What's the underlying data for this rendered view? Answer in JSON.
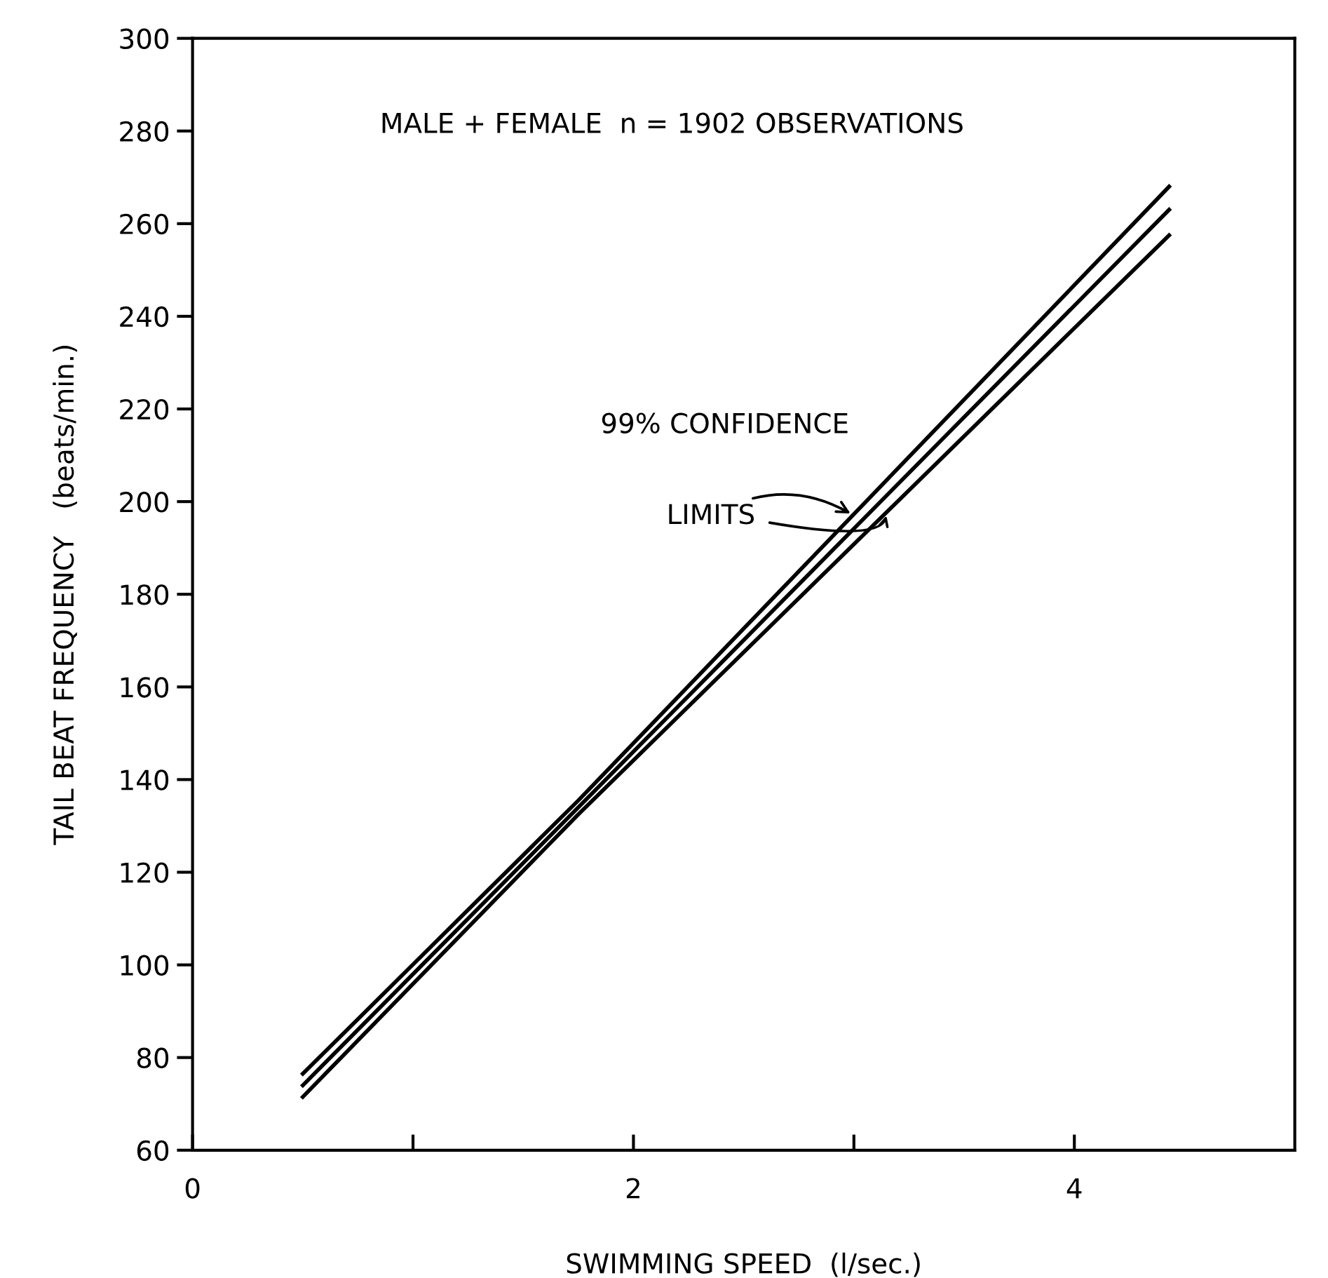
{
  "chart_data": {
    "type": "line",
    "xlabel": "SWIMMING SPEED  (l/sec.)",
    "ylabel": "TAIL BEAT FREQUENCY   (beats/min.)",
    "x": [
      0.5,
      1.75,
      4.43
    ],
    "series": [
      {
        "color": "#000000",
        "values": [
          76.5,
          135.5,
          268
        ]
      },
      {
        "color": "#000000",
        "values": [
          74,
          134,
          263
        ]
      },
      {
        "color": "#000000",
        "values": [
          71.5,
          132.5,
          257.5
        ]
      }
    ],
    "xlim": [
      0,
      5
    ],
    "xticks": [
      0,
      {
        "value": 1,
        "label": null
      },
      2,
      {
        "value": 3,
        "label": null
      },
      4
    ],
    "ylim": [
      60,
      300
    ],
    "yticks": [
      60,
      80,
      100,
      120,
      140,
      160,
      180,
      200,
      220,
      240,
      260,
      280,
      300
    ],
    "annotations": [
      "MALE + FEMALE  n = 1902 OBSERVATIONS",
      "99% CONFIDENCE",
      {
        "text": "LIMITS",
        "x": 3.0,
        "y": 197
      }
    ],
    "grid": false,
    "marker": "none",
    "line_style": "solid"
  }
}
